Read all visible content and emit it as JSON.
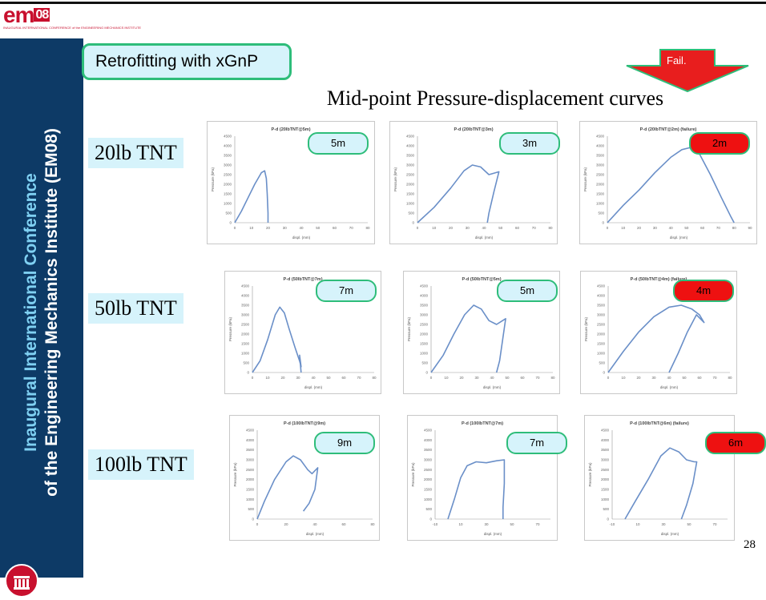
{
  "logo": {
    "text": "em",
    "year": "08",
    "tagline": "INAUGURAL INTERNATIONAL CONFERENCE of the ENGINEERING MECHANICS INSTITUTE"
  },
  "sidebar": {
    "line1": "Inaugural International Conference",
    "line2": "of the Engineering Mechanics Institute (EM08)"
  },
  "subtitle": "Retrofitting with xGnP",
  "fail_arrow": {
    "label": "Fail.",
    "color": "#e81e1e"
  },
  "heading": "Mid-point Pressure-displacement curves",
  "page_number": "28",
  "colors": {
    "curve": "#6a8fc8",
    "pill_fill": "#d6f3fb",
    "pill_border": "#2ebd7a",
    "fail_fill": "#ee1111",
    "sidebar": "#0d3a66"
  },
  "rows": [
    {
      "label": "20lb TNT"
    },
    {
      "label": "50lb TNT"
    },
    {
      "label": "100lb TNT"
    }
  ],
  "chart_data": [
    {
      "type": "line",
      "title": "P-d (20lbTNT@5m)",
      "badge": "5m",
      "failure": false,
      "xlabel": "displ. (mm)",
      "ylabel": "Pressure (kPa)",
      "xlim": [
        0,
        80
      ],
      "ylim": [
        0,
        4500
      ],
      "xticks": [
        "0",
        "10",
        "20",
        "30",
        "40",
        "50",
        "60",
        "70",
        "80"
      ],
      "yticks": [
        "0",
        "500",
        "1000",
        "1500",
        "2000",
        "2500",
        "3000",
        "3500",
        "4000",
        "4500"
      ],
      "series": [
        {
          "points": [
            [
              0,
              0
            ],
            [
              4,
              600
            ],
            [
              8,
              1300
            ],
            [
              12,
              2000
            ],
            [
              16,
              2600
            ],
            [
              18,
              2700
            ],
            [
              19,
              2300
            ],
            [
              19.5,
              1500
            ],
            [
              20,
              500
            ],
            [
              20,
              0
            ]
          ]
        }
      ]
    },
    {
      "type": "line",
      "title": "P-d (20lbTNT@3m)",
      "badge": "3m",
      "failure": false,
      "xlabel": "displ. (mm)",
      "ylabel": "Pressure (kPa)",
      "xlim": [
        0,
        80
      ],
      "ylim": [
        0,
        4500
      ],
      "xticks": [
        "0",
        "10",
        "20",
        "30",
        "40",
        "50",
        "60",
        "70",
        "80"
      ],
      "yticks": [
        "0",
        "500",
        "1000",
        "1500",
        "2000",
        "2500",
        "3000",
        "3500",
        "4000",
        "4500"
      ],
      "series": [
        {
          "points": [
            [
              0,
              0
            ],
            [
              10,
              800
            ],
            [
              20,
              1800
            ],
            [
              28,
              2700
            ],
            [
              33,
              3000
            ],
            [
              38,
              2900
            ],
            [
              43,
              2500
            ],
            [
              47,
              2600
            ],
            [
              49,
              2650
            ],
            [
              46,
              1600
            ],
            [
              43,
              500
            ],
            [
              42,
              0
            ]
          ]
        }
      ]
    },
    {
      "type": "line",
      "title": "P-d (20lbTNT@2m) (failure)",
      "badge": "2m",
      "failure": true,
      "xlabel": "displ. (mm)",
      "ylabel": "Pressure (kPa)",
      "xlim": [
        0,
        90
      ],
      "ylim": [
        0,
        4500
      ],
      "xticks": [
        "0",
        "10",
        "20",
        "30",
        "40",
        "50",
        "60",
        "70",
        "80",
        "90"
      ],
      "yticks": [
        "0",
        "500",
        "1000",
        "1500",
        "2000",
        "2500",
        "3000",
        "3500",
        "4000",
        "4500"
      ],
      "series": [
        {
          "points": [
            [
              0,
              0
            ],
            [
              10,
              900
            ],
            [
              20,
              1700
            ],
            [
              30,
              2600
            ],
            [
              40,
              3400
            ],
            [
              47,
              3800
            ],
            [
              52,
              3900
            ],
            [
              58,
              3600
            ],
            [
              65,
              2500
            ],
            [
              72,
              1300
            ],
            [
              78,
              300
            ],
            [
              80,
              0
            ]
          ]
        }
      ]
    },
    {
      "type": "line",
      "title": "P-d (50lbTNT@7m)",
      "badge": "7m",
      "failure": false,
      "xlabel": "displ. (mm)",
      "ylabel": "Pressure (kPa)",
      "xlim": [
        0,
        80
      ],
      "ylim": [
        0,
        4500
      ],
      "xticks": [
        "0",
        "10",
        "20",
        "30",
        "40",
        "50",
        "60",
        "70",
        "80"
      ],
      "yticks": [
        "0",
        "500",
        "1000",
        "1500",
        "2000",
        "2500",
        "3000",
        "3500",
        "4000",
        "4500"
      ],
      "series": [
        {
          "points": [
            [
              0,
              0
            ],
            [
              5,
              600
            ],
            [
              10,
              1700
            ],
            [
              15,
              3000
            ],
            [
              18,
              3400
            ],
            [
              21,
              3100
            ],
            [
              24,
              2300
            ],
            [
              28,
              1300
            ],
            [
              31,
              600
            ],
            [
              32,
              300
            ],
            [
              31,
              900
            ],
            [
              32,
              0
            ]
          ]
        }
      ]
    },
    {
      "type": "line",
      "title": "P-d (50lbTNT@5m)",
      "badge": "5m",
      "failure": false,
      "xlabel": "displ. (mm)",
      "ylabel": "Pressure (kPa)",
      "xlim": [
        0,
        80
      ],
      "ylim": [
        0,
        4500
      ],
      "xticks": [
        "0",
        "10",
        "20",
        "30",
        "40",
        "50",
        "60",
        "70",
        "80"
      ],
      "yticks": [
        "0",
        "500",
        "1000",
        "1500",
        "2000",
        "2500",
        "3000",
        "3500",
        "4000",
        "4500"
      ],
      "series": [
        {
          "points": [
            [
              0,
              0
            ],
            [
              8,
              900
            ],
            [
              15,
              2000
            ],
            [
              22,
              3000
            ],
            [
              28,
              3500
            ],
            [
              33,
              3300
            ],
            [
              38,
              2700
            ],
            [
              43,
              2500
            ],
            [
              47,
              2700
            ],
            [
              49,
              2800
            ],
            [
              47,
              1700
            ],
            [
              45,
              600
            ],
            [
              43,
              0
            ]
          ]
        }
      ]
    },
    {
      "type": "line",
      "title": "P-d (50lbTNT@4m) (failure)",
      "badge": "4m",
      "failure": true,
      "xlabel": "displ. (mm)",
      "ylabel": "Pressure (kPa)",
      "xlim": [
        0,
        80
      ],
      "ylim": [
        0,
        4500
      ],
      "xticks": [
        "0",
        "10",
        "20",
        "30",
        "40",
        "50",
        "60",
        "70",
        "80"
      ],
      "yticks": [
        "0",
        "500",
        "1000",
        "1500",
        "2000",
        "2500",
        "3000",
        "3500",
        "4000",
        "4500"
      ],
      "series": [
        {
          "points": [
            [
              0,
              0
            ],
            [
              10,
              1100
            ],
            [
              20,
              2100
            ],
            [
              30,
              2900
            ],
            [
              40,
              3400
            ],
            [
              48,
              3500
            ],
            [
              55,
              3300
            ],
            [
              60,
              3000
            ],
            [
              63,
              2600
            ],
            [
              58,
              3000
            ],
            [
              52,
              2100
            ],
            [
              46,
              1000
            ],
            [
              40,
              0
            ]
          ]
        }
      ]
    },
    {
      "type": "line",
      "title": "P-d (100lbTNT@9m)",
      "badge": "9m",
      "failure": false,
      "xlabel": "displ. (mm)",
      "ylabel": "Pressure (kPa)",
      "xlim": [
        0,
        80
      ],
      "ylim": [
        0,
        4500
      ],
      "xticks": [
        "0",
        "20",
        "40",
        "60",
        "80"
      ],
      "yticks": [
        "0",
        "500",
        "1000",
        "1500",
        "2000",
        "2500",
        "3000",
        "3500",
        "4000",
        "4500"
      ],
      "series": [
        {
          "points": [
            [
              0,
              0
            ],
            [
              5,
              900
            ],
            [
              12,
              2000
            ],
            [
              20,
              2900
            ],
            [
              25,
              3200
            ],
            [
              30,
              3000
            ],
            [
              35,
              2500
            ],
            [
              38,
              2300
            ],
            [
              42,
              2600
            ],
            [
              40,
              1500
            ],
            [
              36,
              800
            ],
            [
              32,
              400
            ]
          ]
        }
      ]
    },
    {
      "type": "line",
      "title": "P-d (100lbTNT@7m)",
      "badge": "7m",
      "failure": false,
      "xlabel": "displ. (mm)",
      "ylabel": "Pressure (kPa)",
      "xlim": [
        -10,
        80
      ],
      "ylim": [
        0,
        4500
      ],
      "xticks": [
        "-10",
        "10",
        "30",
        "50",
        "70"
      ],
      "yticks": [
        "0",
        "500",
        "1000",
        "1500",
        "2000",
        "2500",
        "3000",
        "3500",
        "4000",
        "4500"
      ],
      "series": [
        {
          "points": [
            [
              0,
              0
            ],
            [
              5,
              1000
            ],
            [
              10,
              2100
            ],
            [
              15,
              2700
            ],
            [
              22,
              2900
            ],
            [
              30,
              2850
            ],
            [
              38,
              2950
            ],
            [
              44,
              3000
            ],
            [
              44,
              1800
            ],
            [
              43,
              600
            ],
            [
              43,
              0
            ]
          ]
        }
      ]
    },
    {
      "type": "line",
      "title": "P-d (100lbTNT@6m) (failure)",
      "badge": "6m",
      "failure": true,
      "xlabel": "displ. (mm)",
      "ylabel": "Pressure (kPa)",
      "xlim": [
        -10,
        80
      ],
      "ylim": [
        0,
        4500
      ],
      "xticks": [
        "-10",
        "10",
        "30",
        "50",
        "70"
      ],
      "yticks": [
        "0",
        "500",
        "1000",
        "1500",
        "2000",
        "2500",
        "3000",
        "3500",
        "4000",
        "4500"
      ],
      "series": [
        {
          "points": [
            [
              0,
              0
            ],
            [
              8,
              900
            ],
            [
              18,
              2000
            ],
            [
              28,
              3200
            ],
            [
              35,
              3600
            ],
            [
              42,
              3400
            ],
            [
              48,
              3000
            ],
            [
              54,
              2900
            ],
            [
              56,
              2900
            ],
            [
              53,
              1800
            ],
            [
              48,
              700
            ],
            [
              44,
              0
            ]
          ]
        }
      ]
    }
  ]
}
